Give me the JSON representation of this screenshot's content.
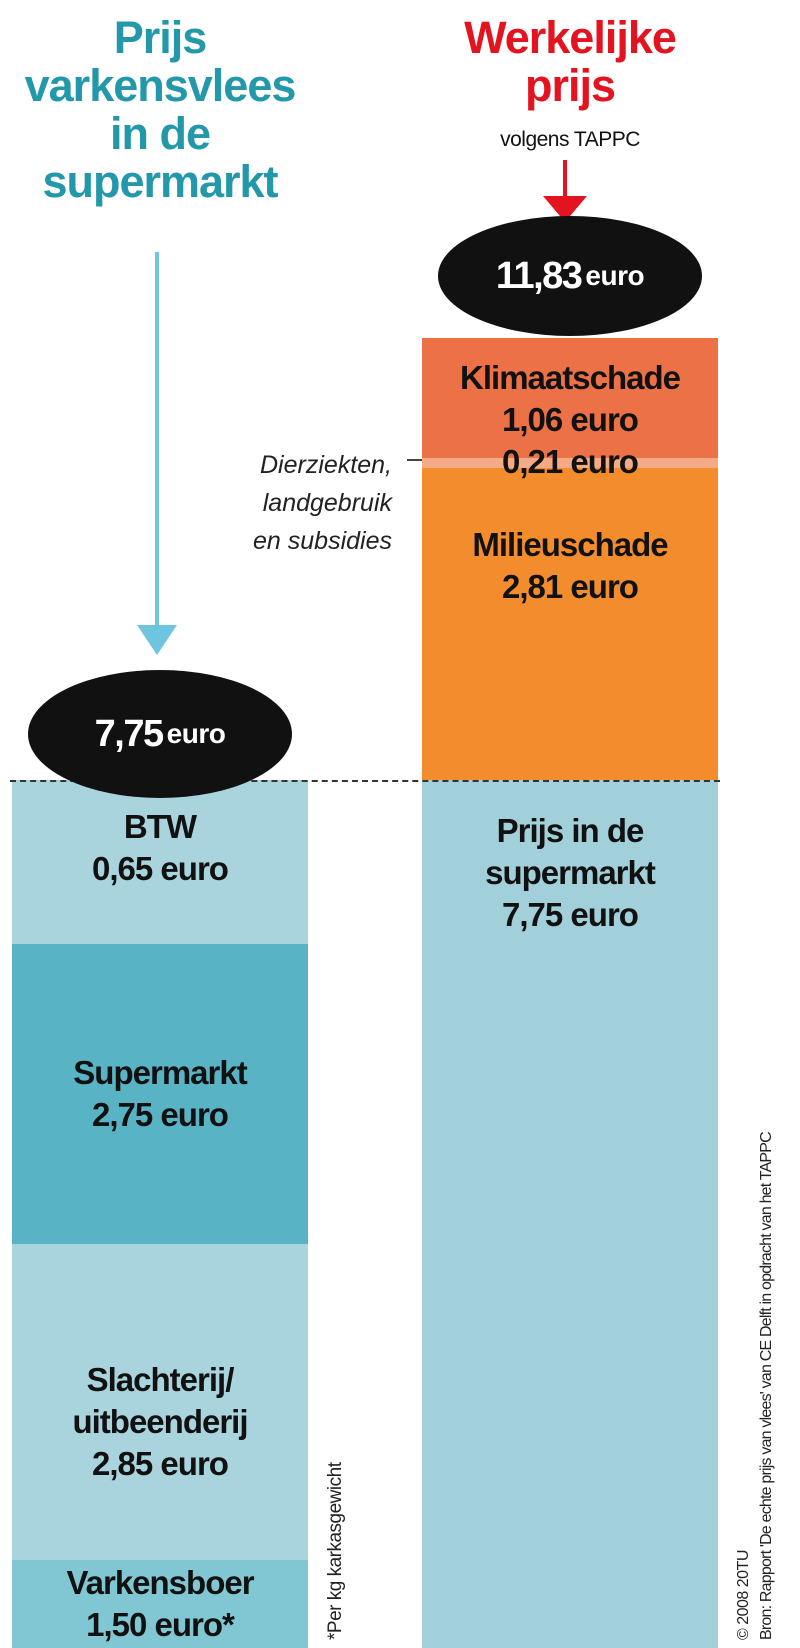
{
  "titles": {
    "left": [
      "Prijs",
      "varkensvlees",
      "in de",
      "supermarkt"
    ],
    "right": [
      "Werkelijke",
      "prijs"
    ],
    "right_sub": "volgens TAPPC"
  },
  "chart_data": {
    "type": "bar",
    "stacked": true,
    "unit": "euro",
    "bars": [
      {
        "total": "7,75",
        "total_unit": "euro",
        "segments": [
          {
            "name": "BTW",
            "value": 0.65,
            "label": "0,65 euro",
            "color": "#a9d4dd"
          },
          {
            "name": "Supermarkt",
            "value": 2.75,
            "label": "2,75 euro",
            "color": "#58b3c4"
          },
          {
            "name": "Slachterij/ uitbeenderij",
            "label_lines": [
              "Slachterij/",
              "uitbeenderij"
            ],
            "value": 2.85,
            "label": "2,85 euro",
            "color": "#a9d4dd"
          },
          {
            "name": "Varkensboer",
            "value": 1.5,
            "label": "1,50 euro*",
            "color": "#80c7d3"
          }
        ]
      },
      {
        "total": "11,83",
        "total_unit": "euro",
        "segments": [
          {
            "name": "Klimaatschade",
            "value": 1.06,
            "label": "1,06 euro",
            "color": "#ec7147"
          },
          {
            "name": "",
            "value": 0.21,
            "label": "0,21 euro",
            "color": "#f4a987"
          },
          {
            "name": "Milieuschade",
            "value": 2.81,
            "label": "2,81 euro",
            "color": "#f28c2d"
          },
          {
            "name": "Prijs in de supermarkt",
            "label_lines": [
              "Prijs in de",
              "supermarkt"
            ],
            "value": 7.75,
            "label": "7,75 euro",
            "color": "#a1d0da"
          }
        ]
      }
    ],
    "annotation": [
      "Dierziekten,",
      "landgebruik",
      "en subsidies"
    ]
  },
  "footnote": "*Per kg karkasgewicht",
  "credit": [
    "© 2008 20TU",
    "Bron: Rapport 'De echte prijs van vlees' van CE Delft in opdracht van het TAPPC"
  ],
  "colors": {
    "left_arrow": "#6fc5e0",
    "right_arrow": "#e3141f",
    "dotted_line": "#333333"
  }
}
